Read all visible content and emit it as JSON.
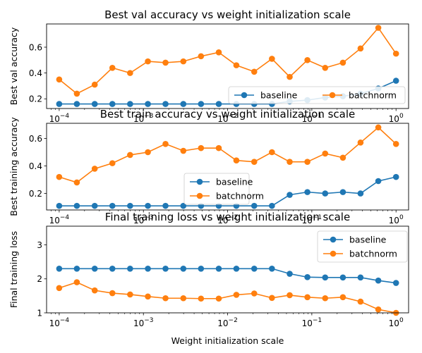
{
  "chart_data": [
    {
      "type": "line",
      "title": "Best val accuracy vs weight initialization scale",
      "xlabel": "",
      "ylabel": "Best val accuracy",
      "xscale": "log",
      "xlim": [
        7.08e-05,
        1.41
      ],
      "ylim": [
        0.125,
        0.78
      ],
      "x_tick_labels": [
        "10^-4",
        "10^-3",
        "10^-2",
        "10^-1",
        "10^0"
      ],
      "y_tick_labels": [
        "0.2",
        "0.4",
        "0.6"
      ],
      "y_ticks": [
        0.2,
        0.4,
        0.6
      ],
      "legend": {
        "placement": "bottom-right",
        "columns": 2
      },
      "x": [
        0.0001,
        0.000162,
        0.000264,
        0.000428,
        0.000695,
        0.00113,
        0.00183,
        0.00298,
        0.00483,
        0.00785,
        0.0127,
        0.0207,
        0.0336,
        0.0546,
        0.0886,
        0.144,
        0.234,
        0.379,
        0.616,
        1.0
      ],
      "series": [
        {
          "name": "baseline",
          "color": "#1f77b4",
          "values": [
            0.16,
            0.16,
            0.16,
            0.16,
            0.16,
            0.16,
            0.16,
            0.16,
            0.16,
            0.16,
            0.16,
            0.16,
            0.16,
            0.18,
            0.19,
            0.21,
            0.22,
            0.24,
            0.28,
            0.34
          ]
        },
        {
          "name": "batchnorm",
          "color": "#ff7f0e",
          "values": [
            0.35,
            0.24,
            0.31,
            0.44,
            0.4,
            0.49,
            0.48,
            0.49,
            0.53,
            0.56,
            0.46,
            0.41,
            0.51,
            0.37,
            0.5,
            0.44,
            0.48,
            0.59,
            0.75,
            0.55
          ]
        }
      ]
    },
    {
      "type": "line",
      "title": "Best train accuracy vs weight initialization scale",
      "xlabel": "",
      "ylabel": "Best training accuracy",
      "xscale": "log",
      "xlim": [
        7.08e-05,
        1.41
      ],
      "ylim": [
        0.08,
        0.71
      ],
      "x_tick_labels": [
        "10^-4",
        "10^-3",
        "10^-2",
        "10^-1",
        "10^0"
      ],
      "y_tick_labels": [
        "0.2",
        "0.4",
        "0.6"
      ],
      "y_ticks": [
        0.2,
        0.4,
        0.6
      ],
      "legend": {
        "placement": "center",
        "columns": 1
      },
      "x": [
        0.0001,
        0.000162,
        0.000264,
        0.000428,
        0.000695,
        0.00113,
        0.00183,
        0.00298,
        0.00483,
        0.00785,
        0.0127,
        0.0207,
        0.0336,
        0.0546,
        0.0886,
        0.144,
        0.234,
        0.379,
        0.616,
        1.0
      ],
      "series": [
        {
          "name": "baseline",
          "color": "#1f77b4",
          "values": [
            0.11,
            0.11,
            0.11,
            0.11,
            0.11,
            0.11,
            0.11,
            0.11,
            0.11,
            0.11,
            0.11,
            0.11,
            0.11,
            0.19,
            0.21,
            0.2,
            0.21,
            0.2,
            0.29,
            0.32
          ]
        },
        {
          "name": "batchnorm",
          "color": "#ff7f0e",
          "values": [
            0.32,
            0.28,
            0.38,
            0.42,
            0.48,
            0.5,
            0.56,
            0.51,
            0.53,
            0.53,
            0.44,
            0.43,
            0.5,
            0.43,
            0.43,
            0.49,
            0.46,
            0.57,
            0.68,
            0.56
          ]
        }
      ]
    },
    {
      "type": "line",
      "title": "Final training loss vs weight initialization scale",
      "xlabel": "Weight initialization scale",
      "ylabel": "Final training loss",
      "xscale": "log",
      "xlim": [
        7.08e-05,
        1.41
      ],
      "ylim": [
        1.0,
        3.55
      ],
      "x_tick_labels": [
        "10^-4",
        "10^-3",
        "10^-2",
        "10^-1",
        "10^0"
      ],
      "y_tick_labels": [
        "1",
        "2",
        "3"
      ],
      "y_ticks": [
        1,
        2,
        3
      ],
      "legend": {
        "placement": "top-right",
        "columns": 1
      },
      "x": [
        0.0001,
        0.000162,
        0.000264,
        0.000428,
        0.000695,
        0.00113,
        0.00183,
        0.00298,
        0.00483,
        0.00785,
        0.0127,
        0.0207,
        0.0336,
        0.0546,
        0.0886,
        0.144,
        0.234,
        0.379,
        0.616,
        1.0
      ],
      "series": [
        {
          "name": "baseline",
          "color": "#1f77b4",
          "values": [
            2.3,
            2.3,
            2.3,
            2.3,
            2.3,
            2.3,
            2.3,
            2.3,
            2.3,
            2.3,
            2.3,
            2.3,
            2.3,
            2.15,
            2.05,
            2.04,
            2.04,
            2.04,
            1.95,
            1.88
          ]
        },
        {
          "name": "batchnorm",
          "color": "#ff7f0e",
          "values": [
            1.73,
            1.9,
            1.66,
            1.58,
            1.54,
            1.48,
            1.43,
            1.43,
            1.42,
            1.42,
            1.53,
            1.57,
            1.44,
            1.52,
            1.46,
            1.43,
            1.46,
            1.33,
            1.1,
            1.0
          ]
        }
      ]
    }
  ]
}
